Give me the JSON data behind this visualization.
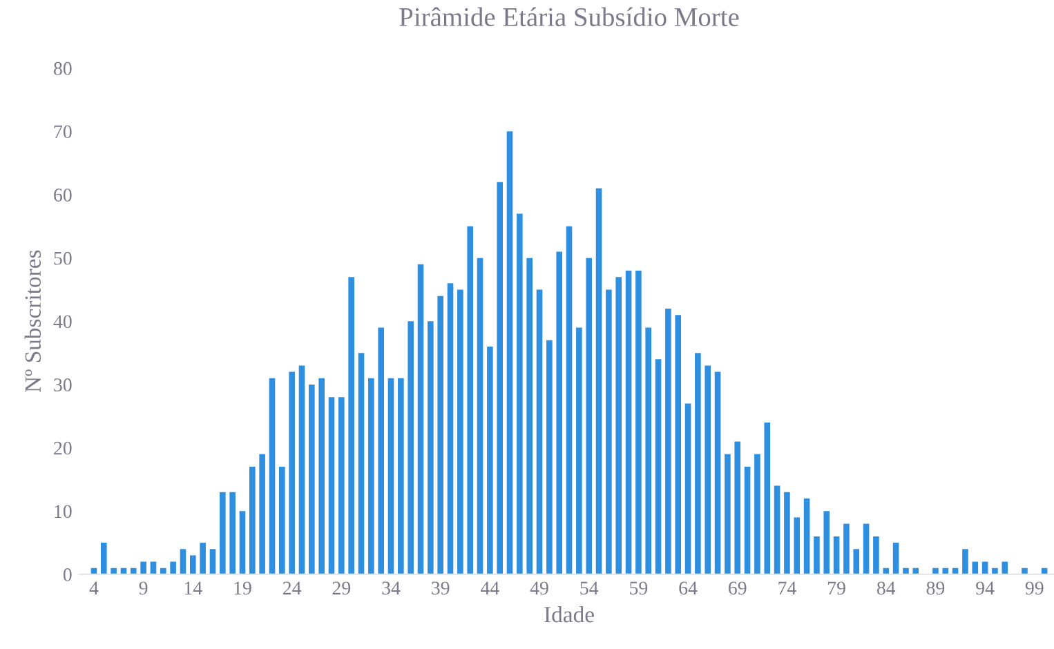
{
  "chart_data": {
    "type": "bar",
    "title": "Pirâmide Etária Subsídio Morte",
    "xlabel": "Idade",
    "ylabel": "Nº Subscritores",
    "x": [
      4,
      5,
      6,
      7,
      8,
      9,
      10,
      11,
      12,
      13,
      14,
      15,
      16,
      17,
      18,
      19,
      20,
      21,
      22,
      23,
      24,
      25,
      26,
      27,
      28,
      29,
      30,
      31,
      32,
      33,
      34,
      35,
      36,
      37,
      38,
      39,
      40,
      41,
      42,
      43,
      44,
      45,
      46,
      47,
      48,
      49,
      50,
      51,
      52,
      53,
      54,
      55,
      56,
      57,
      58,
      59,
      60,
      61,
      62,
      63,
      64,
      65,
      66,
      67,
      68,
      69,
      70,
      71,
      72,
      73,
      74,
      75,
      76,
      77,
      78,
      79,
      80,
      81,
      82,
      83,
      84,
      85,
      86,
      87,
      89,
      90,
      91,
      92,
      93,
      94,
      95,
      96,
      98,
      100
    ],
    "values": [
      1,
      5,
      1,
      1,
      1,
      2,
      2,
      1,
      2,
      4,
      3,
      5,
      4,
      13,
      13,
      10,
      17,
      19,
      31,
      17,
      32,
      33,
      30,
      31,
      28,
      28,
      47,
      35,
      31,
      39,
      31,
      31,
      40,
      49,
      40,
      44,
      46,
      45,
      55,
      50,
      36,
      62,
      70,
      57,
      50,
      45,
      37,
      51,
      55,
      39,
      50,
      61,
      45,
      47,
      48,
      48,
      39,
      34,
      42,
      41,
      27,
      35,
      33,
      32,
      19,
      21,
      17,
      19,
      24,
      14,
      13,
      9,
      12,
      6,
      10,
      6,
      8,
      4,
      8,
      6,
      1,
      5,
      1,
      1,
      1,
      1,
      1,
      4,
      2,
      2,
      1,
      2,
      1,
      1
    ],
    "color": "#2e8fe0",
    "xlim": [
      2.5,
      101.5
    ],
    "xticks": [
      4,
      9,
      14,
      19,
      24,
      29,
      34,
      39,
      44,
      49,
      54,
      59,
      64,
      69,
      74,
      79,
      84,
      89,
      94,
      99
    ],
    "ylim": [
      0,
      80
    ],
    "yticks": [
      0,
      10,
      20,
      30,
      40,
      50,
      60,
      70,
      80
    ],
    "grid": false
  }
}
